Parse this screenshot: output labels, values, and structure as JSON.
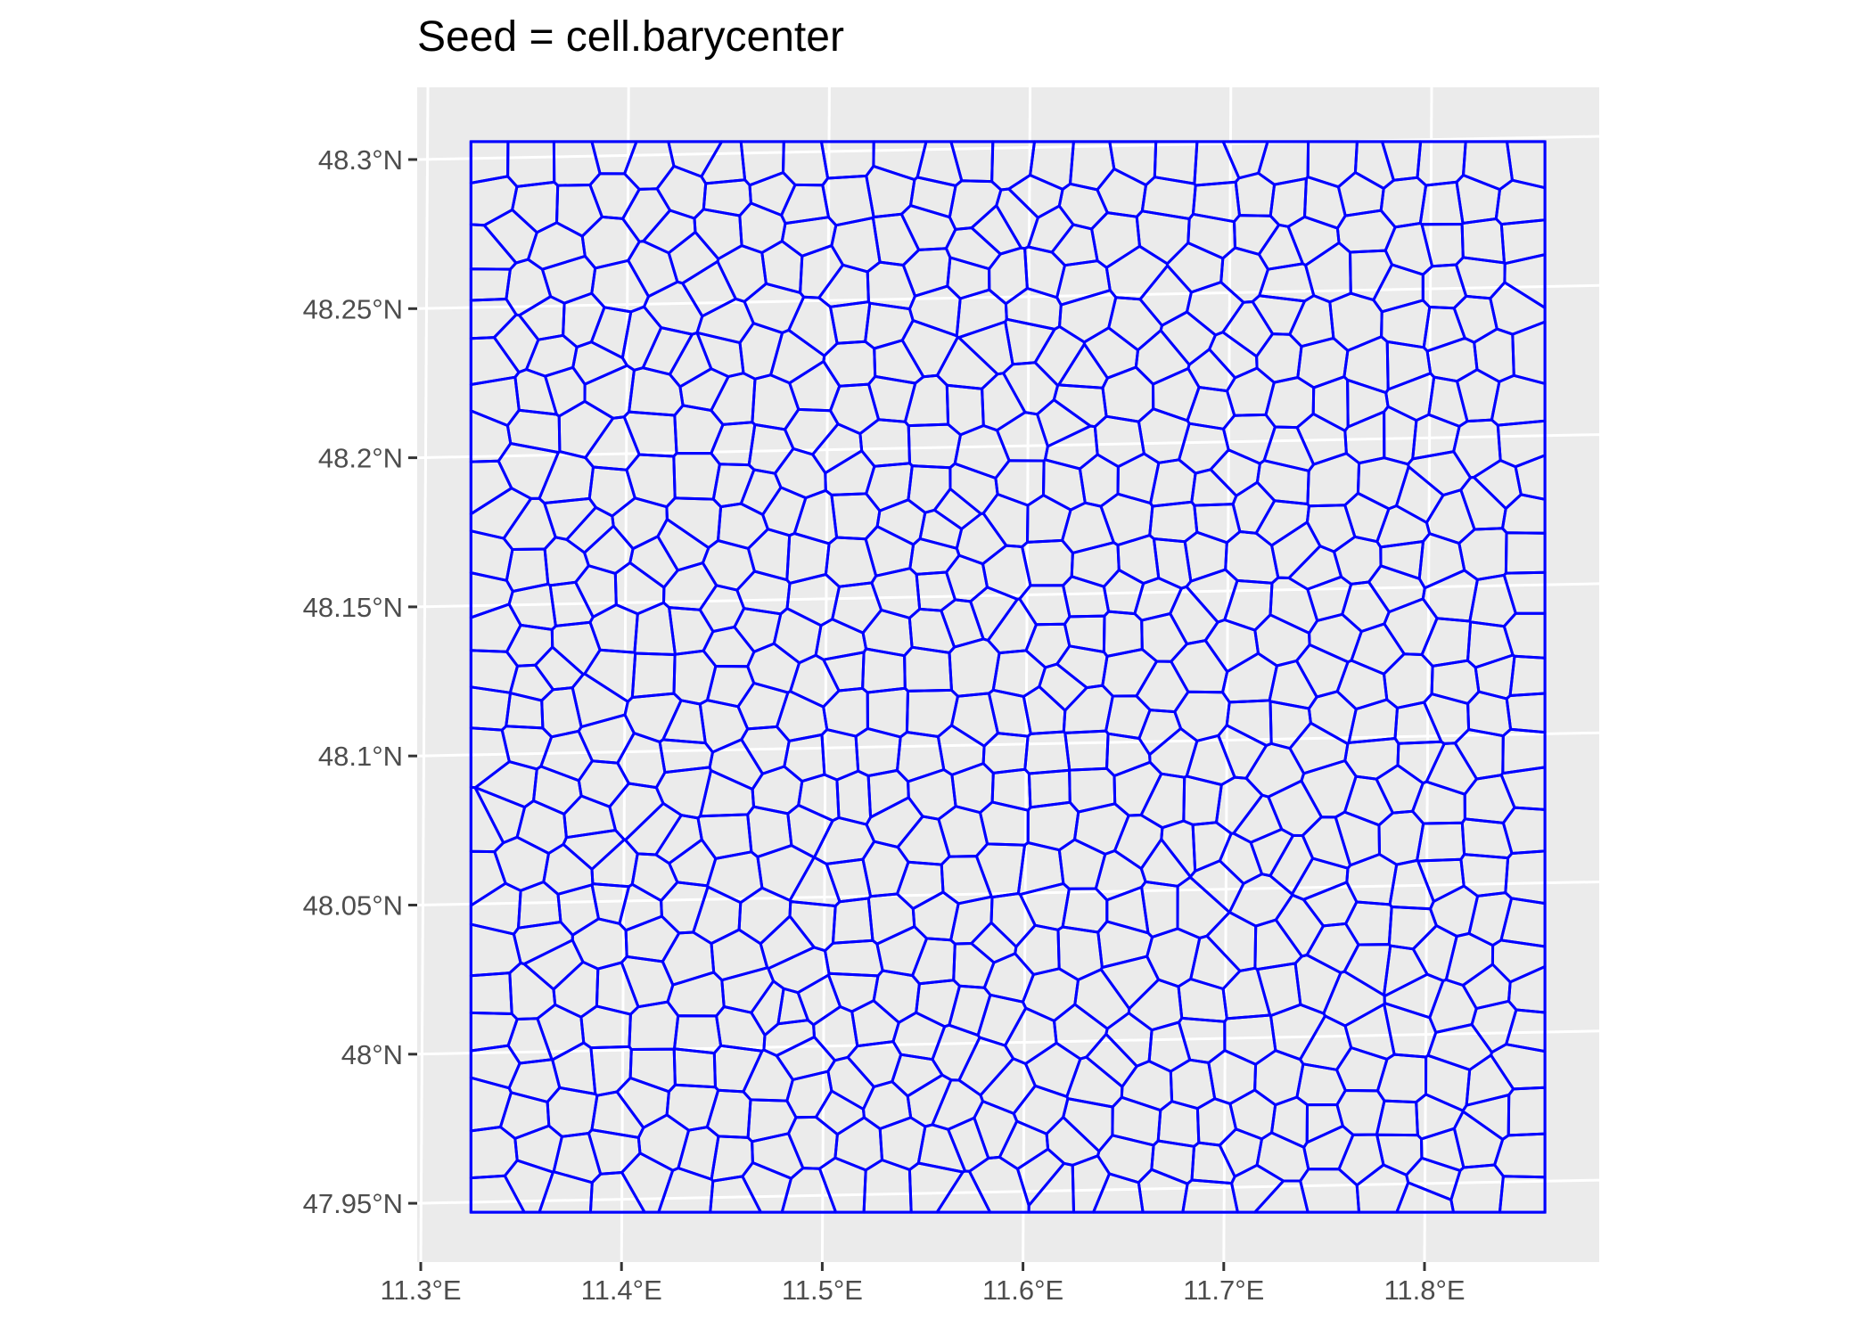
{
  "chart_data": {
    "type": "map",
    "title": "Seed = cell.barycenter",
    "xlabel": "",
    "ylabel": "",
    "x_ticks": [
      "11.3°E",
      "11.4°E",
      "11.5°E",
      "11.6°E",
      "11.7°E",
      "11.8°E"
    ],
    "x_tick_values": [
      11.3,
      11.4,
      11.5,
      11.6,
      11.7,
      11.8
    ],
    "y_ticks": [
      "48.3°N",
      "48.25°N",
      "48.2°N",
      "48.15°N",
      "48.1°N",
      "48.05°N",
      "48°N",
      "47.95°N"
    ],
    "y_tick_values": [
      48.3,
      48.25,
      48.2,
      48.15,
      48.1,
      48.05,
      48.0,
      47.95
    ],
    "xlim": [
      11.3,
      11.88
    ],
    "ylim": [
      47.93,
      48.32
    ],
    "bounding_box": {
      "lon_min": 11.325,
      "lon_max": 11.86,
      "lat_min": 47.947,
      "lat_max": 48.306
    },
    "cell_count_estimate": 700,
    "grid": true,
    "colors": {
      "panel_bg": "#ebebeb",
      "grid": "#ffffff",
      "cells": "#0000ff",
      "ticks": "#333333",
      "tick_labels": "#4d4d4d"
    }
  }
}
